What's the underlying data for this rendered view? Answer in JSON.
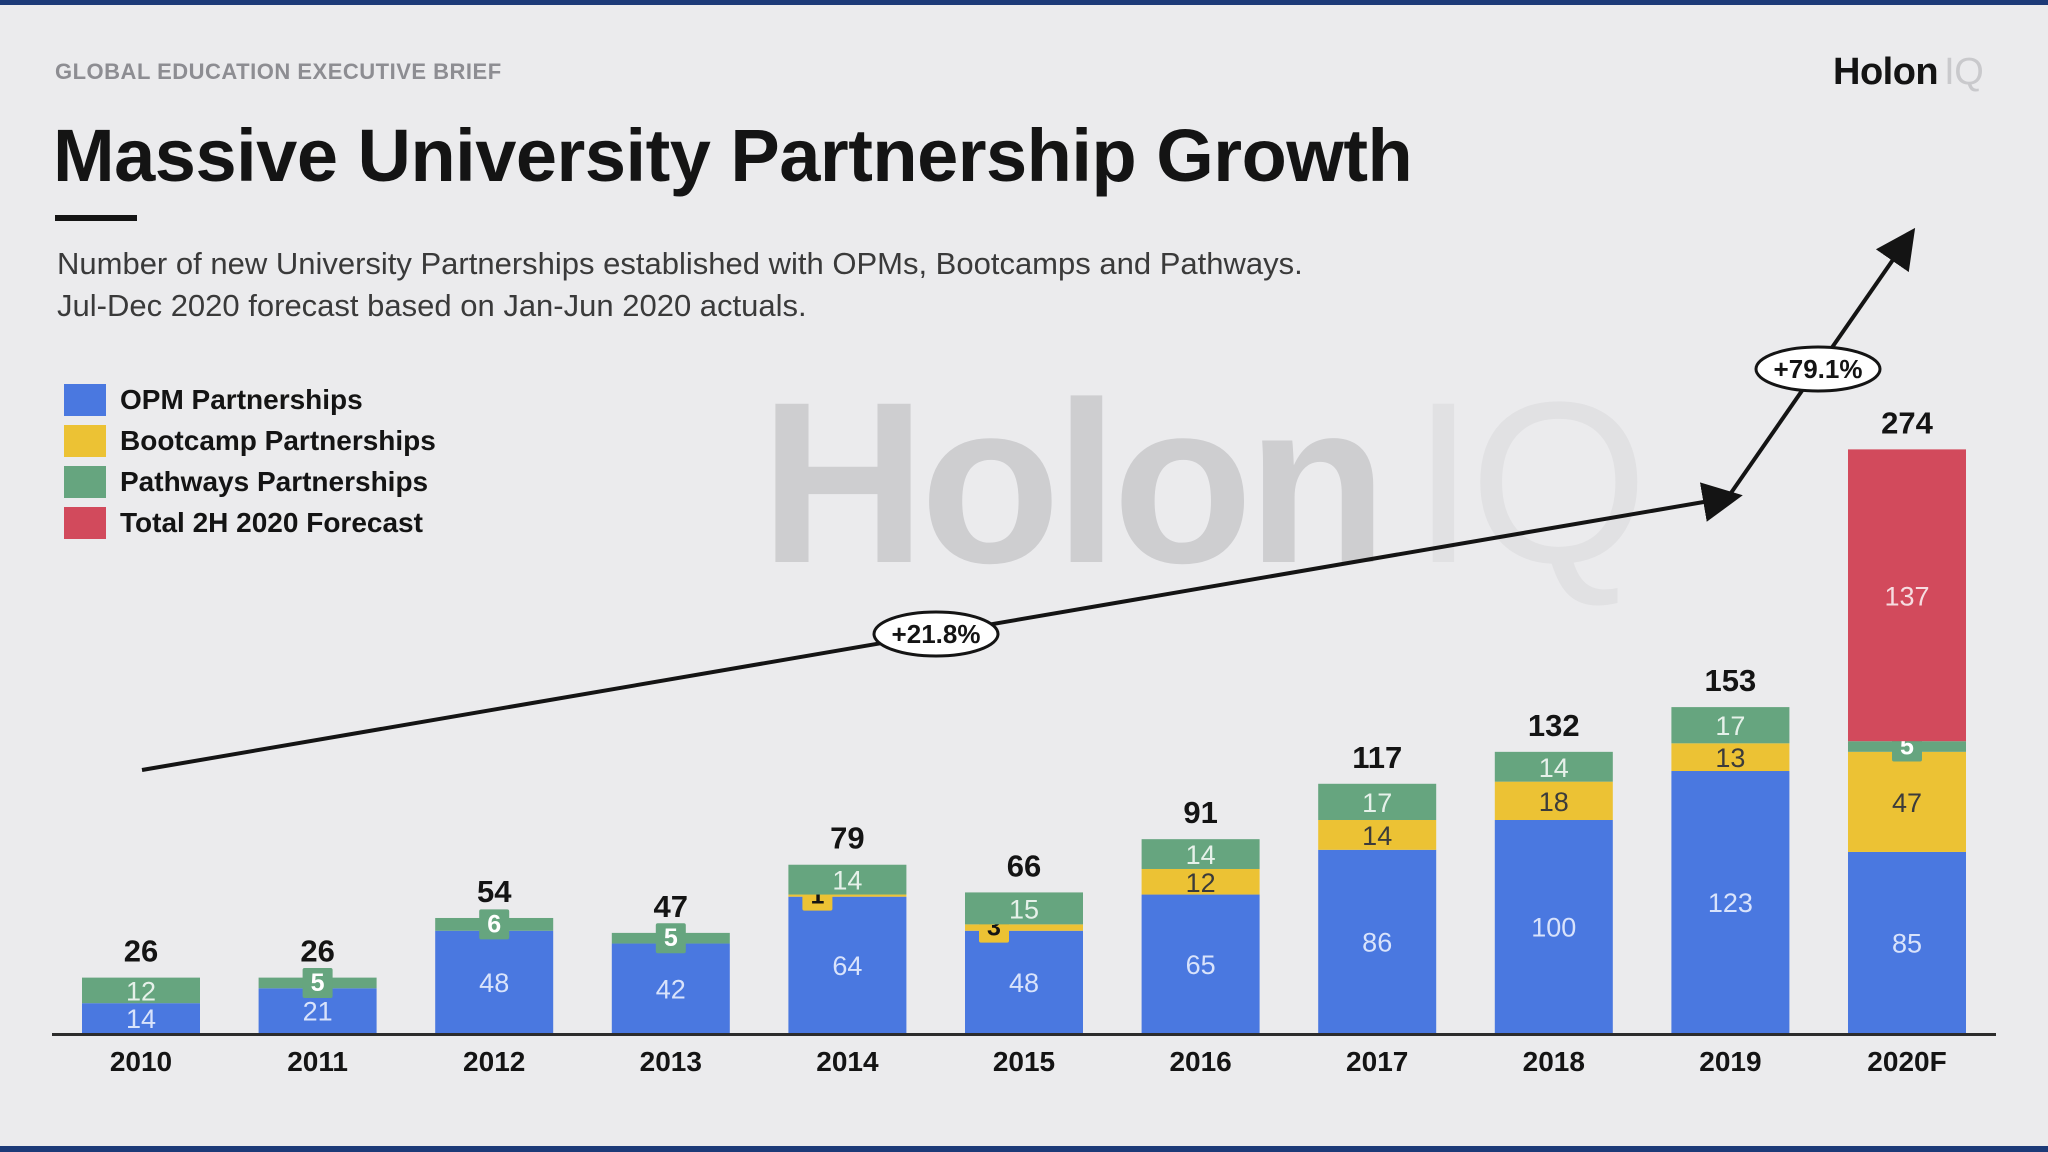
{
  "header": {
    "kicker": "GLOBAL EDUCATION EXECUTIVE BRIEF",
    "title": "Massive University Partnership Growth",
    "subtitle_line1": "Number of new University Partnerships established with OPMs, Bootcamps and Pathways.",
    "subtitle_line2": "Jul-Dec 2020 forecast based on Jan-Jun 2020 actuals."
  },
  "brand": {
    "name": "Holon",
    "suffix": "IQ"
  },
  "colors": {
    "opm": "#4a78e0",
    "bootcamp": "#ecc234",
    "pathways": "#66a57f",
    "forecast": "#d24a5c",
    "axis": "#2c2c2c",
    "text": "#141414"
  },
  "chart_data": {
    "type": "bar",
    "stacked": true,
    "categories": [
      "2010",
      "2011",
      "2012",
      "2013",
      "2014",
      "2015",
      "2016",
      "2017",
      "2018",
      "2019",
      "2020F"
    ],
    "series": [
      {
        "name": "OPM Partnerships",
        "color": "#4a78e0",
        "values": [
          14,
          21,
          48,
          42,
          64,
          48,
          65,
          86,
          100,
          123,
          85
        ]
      },
      {
        "name": "Bootcamp Partnerships",
        "color": "#ecc234",
        "values": [
          0,
          0,
          0,
          0,
          1,
          3,
          12,
          14,
          18,
          13,
          47
        ]
      },
      {
        "name": "Pathways Partnerships",
        "color": "#66a57f",
        "values": [
          12,
          5,
          6,
          5,
          14,
          15,
          14,
          17,
          14,
          17,
          5
        ]
      },
      {
        "name": "Total 2H 2020 Forecast",
        "color": "#d24a5c",
        "values": [
          0,
          0,
          0,
          0,
          0,
          0,
          0,
          0,
          0,
          0,
          137
        ]
      }
    ],
    "totals": [
      26,
      26,
      54,
      47,
      79,
      66,
      91,
      117,
      132,
      153,
      274
    ],
    "annotations": [
      {
        "label": "+21.8%",
        "from": "2010",
        "to": "2019"
      },
      {
        "label": "+79.1%",
        "from": "2019",
        "to": "2020F"
      }
    ],
    "legend_position": "top-left",
    "grid": false,
    "ylim": [
      0,
      274
    ]
  }
}
